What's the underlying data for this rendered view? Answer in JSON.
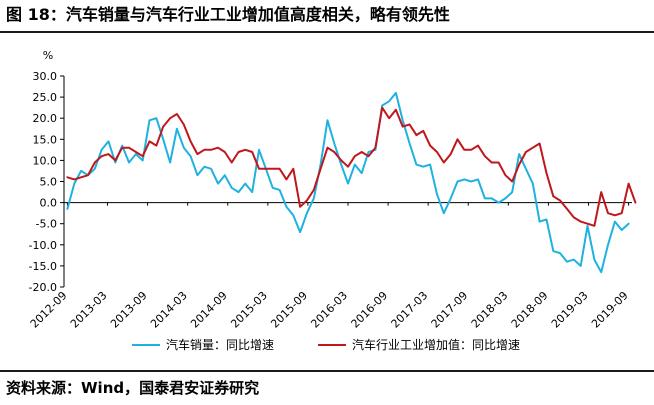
{
  "figure": {
    "title": "图 18：汽车销量与汽车行业工业增加值高度相关，略有领先性",
    "source": "资料来源：Wind，国泰君安证券研究",
    "colors": {
      "rule": "#1a1a1a",
      "axis": "#000000"
    }
  },
  "chart_data": {
    "type": "line",
    "ylabel": "%",
    "ylim": [
      -20,
      30
    ],
    "yticks": [
      "30.0",
      "25.0",
      "20.0",
      "15.0",
      "10.0",
      "5.0",
      "0.0",
      "-5.0",
      "-10.0",
      "-15.0",
      "-20.0"
    ],
    "x_range": [
      "2012-09",
      "2019-09"
    ],
    "xtick_labels": [
      "2012-09",
      "2013-03",
      "2013-09",
      "2014-03",
      "2014-09",
      "2015-03",
      "2015-09",
      "2016-03",
      "2016-09",
      "2017-03",
      "2017-09",
      "2018-03",
      "2018-09",
      "2019-03",
      "2019-09"
    ],
    "grid": false,
    "legend_position": "bottom",
    "series": [
      {
        "name": "汽车销量：同比增速",
        "color": "#1fb1e0",
        "values": [
          -1.5,
          4.5,
          7.5,
          6.5,
          8.0,
          12.5,
          14.5,
          9.5,
          13.5,
          9.5,
          11.5,
          10.0,
          19.5,
          20.0,
          15.0,
          9.5,
          17.5,
          13.0,
          11.0,
          6.5,
          8.5,
          8.0,
          4.5,
          6.5,
          3.5,
          2.5,
          4.5,
          2.5,
          12.5,
          8.0,
          3.5,
          3.0,
          -1.0,
          -3.0,
          -7.0,
          -2.5,
          1.0,
          9.0,
          19.5,
          14.0,
          9.0,
          4.5,
          9.0,
          7.0,
          12.0,
          12.5,
          23.0,
          24.0,
          26.0,
          19.5,
          14.0,
          9.0,
          8.5,
          9.0,
          2.0,
          -2.5,
          1.0,
          5.0,
          5.5,
          5.0,
          5.5,
          1.0,
          1.0,
          0.0,
          1.0,
          2.5,
          11.5,
          8.0,
          4.5,
          -4.5,
          -4.0,
          -11.5,
          -12.0,
          -14.0,
          -13.5,
          -15.0,
          -5.5,
          -13.5,
          -16.5,
          -10.0,
          -4.5,
          -6.5,
          -5.0
        ]
      },
      {
        "name": "汽车行业工业增加值：同比增速",
        "color": "#c0171d",
        "values": [
          6.0,
          5.5,
          6.0,
          6.5,
          9.5,
          11.0,
          11.5,
          10.0,
          13.0,
          13.0,
          12.0,
          11.0,
          14.5,
          13.5,
          18.0,
          20.0,
          21.0,
          18.5,
          14.5,
          11.5,
          12.5,
          12.5,
          13.0,
          12.0,
          9.5,
          12.0,
          12.5,
          12.0,
          8.0,
          8.0,
          8.0,
          8.0,
          5.5,
          8.0,
          -1.0,
          0.5,
          3.0,
          8.0,
          13.0,
          12.0,
          10.0,
          8.5,
          11.0,
          12.0,
          11.0,
          13.0,
          22.5,
          20.0,
          22.0,
          18.0,
          18.5,
          16.0,
          17.0,
          13.5,
          12.0,
          9.5,
          11.5,
          15.0,
          12.5,
          12.5,
          13.5,
          11.0,
          9.5,
          9.5,
          6.5,
          5.0,
          9.0,
          12.0,
          13.0,
          14.0,
          7.0,
          1.5,
          0.5,
          -1.5,
          -3.5,
          -4.5,
          -5.0,
          -5.5,
          2.5,
          -2.5,
          -3.0,
          -2.5,
          4.5,
          0.0
        ]
      }
    ]
  }
}
